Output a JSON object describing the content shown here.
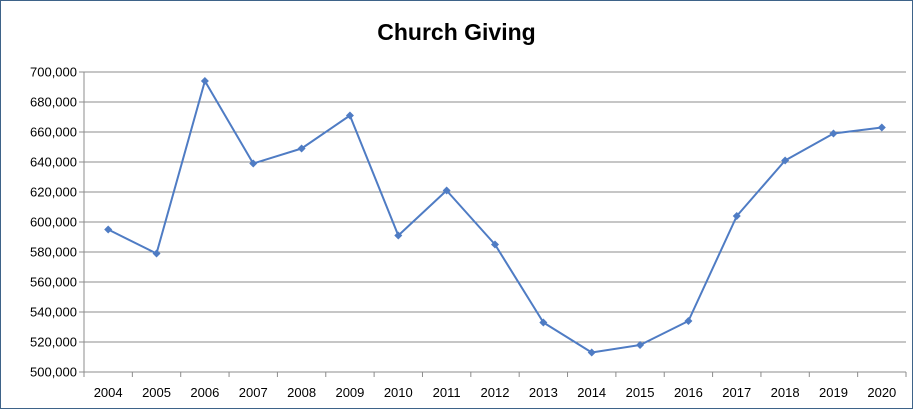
{
  "chart_data": {
    "type": "line",
    "title": "Church Giving",
    "xlabel": "",
    "ylabel": "",
    "x": [
      "2004",
      "2005",
      "2006",
      "2007",
      "2008",
      "2009",
      "2010",
      "2011",
      "2012",
      "2013",
      "2014",
      "2015",
      "2016",
      "2017",
      "2018",
      "2019",
      "2020"
    ],
    "series": [
      {
        "values": [
          595000,
          579000,
          694000,
          639000,
          649000,
          671000,
          591000,
          621000,
          585000,
          533000,
          513000,
          518000,
          534000,
          604000,
          641000,
          659000,
          663000
        ],
        "color": "#4f7cc4"
      }
    ],
    "y_ticks": [
      "500,000",
      "520,000",
      "540,000",
      "560,000",
      "580,000",
      "600,000",
      "620,000",
      "640,000",
      "660,000",
      "680,000",
      "700,000"
    ],
    "ylim": [
      500000,
      700000
    ],
    "grid": true,
    "legend": "none",
    "marker": "diamond",
    "colors": {
      "frame": "#3e6389",
      "grid": "#8c8c8c",
      "axis": "#8c8c8c"
    }
  }
}
